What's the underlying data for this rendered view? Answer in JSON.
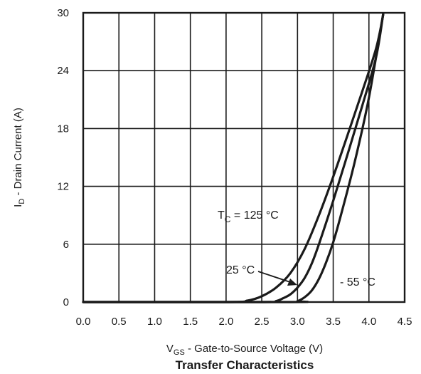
{
  "chart_data": {
    "type": "line",
    "title": "Transfer Characteristics",
    "xlabel": {
      "main": "V",
      "sub": "GS",
      "rest": " - Gate-to-Source Voltage (V)"
    },
    "ylabel": {
      "main": "I",
      "sub": "D",
      "rest": " - Drain Current (A)"
    },
    "xlim": [
      0,
      4.5
    ],
    "ylim": [
      0,
      30
    ],
    "xticks": [
      "0.0",
      "0.5",
      "1.0",
      "1.5",
      "2.0",
      "2.5",
      "3.0",
      "3.5",
      "4.0",
      "4.5"
    ],
    "yticks": [
      "0",
      "6",
      "12",
      "18",
      "24",
      "30"
    ],
    "grid": true,
    "series": [
      {
        "label": {
          "main": "T",
          "sub": "C",
          "rest": " = 125 °C"
        },
        "x": [
          0.0,
          2.0,
          2.3,
          2.5,
          2.7,
          2.9,
          3.1,
          3.3,
          3.5,
          3.7,
          3.9,
          4.1,
          4.2
        ],
        "y": [
          0.0,
          0.0,
          0.15,
          0.6,
          1.5,
          3.0,
          5.5,
          9.0,
          13.0,
          17.3,
          21.7,
          26.3,
          29.8
        ]
      },
      {
        "label": {
          "main": "25 °C",
          "sub": "",
          "rest": ""
        },
        "x": [
          0.0,
          2.5,
          2.7,
          2.8,
          2.9,
          3.0,
          3.1,
          3.2,
          3.3,
          3.5,
          3.7,
          3.9,
          4.1,
          4.2
        ],
        "y": [
          0.0,
          0.0,
          0.1,
          0.4,
          0.8,
          1.5,
          2.5,
          4.0,
          6.0,
          10.5,
          15.3,
          20.2,
          25.4,
          29.9
        ]
      },
      {
        "label": {
          "main": "- 55 °C",
          "sub": "",
          "rest": ""
        },
        "x": [
          0.0,
          2.9,
          3.0,
          3.1,
          3.2,
          3.3,
          3.4,
          3.5,
          3.6,
          3.8,
          4.0,
          4.2
        ],
        "y": [
          0.0,
          0.0,
          0.1,
          0.5,
          1.2,
          2.4,
          4.1,
          6.2,
          8.8,
          14.5,
          21.2,
          29.9
        ]
      }
    ]
  }
}
